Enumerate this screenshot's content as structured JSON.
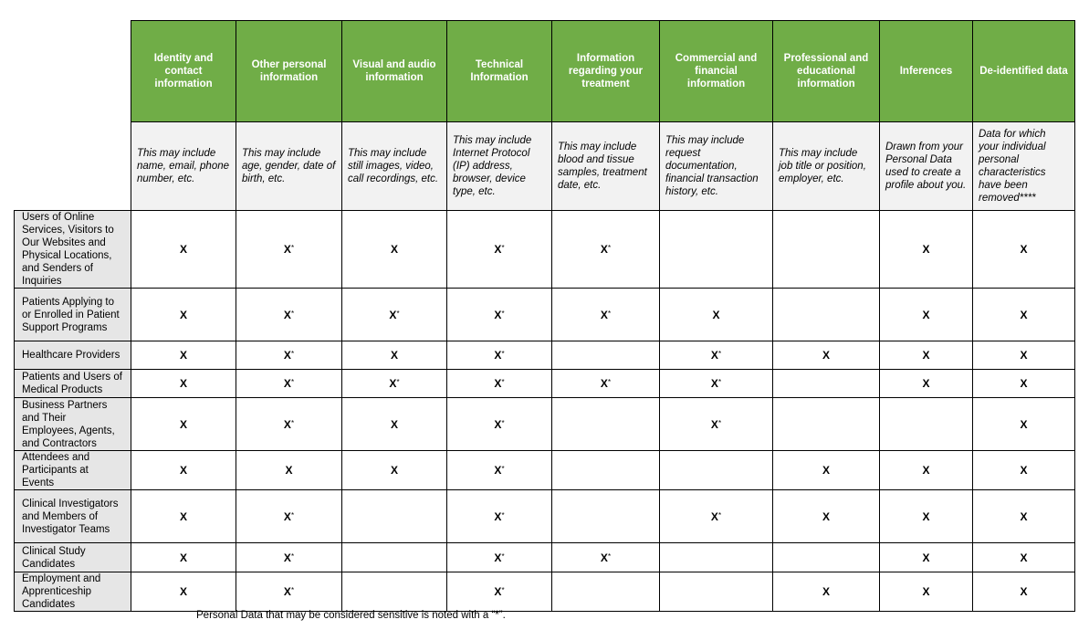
{
  "columns": [
    {
      "title": "Identity and contact information",
      "description": "This may include name, email, phone number, etc."
    },
    {
      "title": "Other personal information",
      "description": "This may include age, gender, date of birth, etc."
    },
    {
      "title": "Visual and audio information",
      "description": "This may include still images, video, call recordings, etc."
    },
    {
      "title": "Technical Information",
      "description": "This may include Internet Protocol (IP) address, browser, device type, etc."
    },
    {
      "title": "Information regarding your treatment",
      "description": "This may include blood and tissue samples, treatment date, etc."
    },
    {
      "title": "Commercial and financial information",
      "description": "This may include request documentation, financial transaction history, etc."
    },
    {
      "title": "Professional and educational information",
      "description": "This may include job title or position, employer, etc."
    },
    {
      "title": "Inferences",
      "description": "Drawn from your Personal Data used to create a profile about you."
    },
    {
      "title": "De-identified data",
      "description": "Data for which your individual personal characteristics have been removed****"
    }
  ],
  "rows": [
    {
      "label": "Users of Online Services, Visitors to Our Websites and Physical Locations, and Senders of Inquiries",
      "cells": [
        "X",
        "X*",
        "X",
        "X*",
        "X*",
        "",
        "",
        "X",
        "X"
      ]
    },
    {
      "label": "Patients Applying to or Enrolled in Patient Support Programs",
      "cells": [
        "X",
        "X*",
        "X*",
        "X*",
        "X*",
        "X",
        "",
        "X",
        "X"
      ]
    },
    {
      "label": "Healthcare Providers",
      "cells": [
        "X",
        "X*",
        "X",
        "X*",
        "",
        "X*",
        "X",
        "X",
        "X"
      ]
    },
    {
      "label": "Patients and Users of Medical Products",
      "cells": [
        "X",
        "X*",
        "X*",
        "X*",
        "X*",
        "X*",
        "",
        "X",
        "X"
      ]
    },
    {
      "label": "Business Partners and Their Employees, Agents, and Contractors",
      "cells": [
        "X",
        "X*",
        "X",
        "X*",
        "",
        "X*",
        "",
        "",
        "X"
      ]
    },
    {
      "label": "Attendees and Participants at Events",
      "cells": [
        "X",
        "X",
        "X",
        "X*",
        "",
        "",
        "X",
        "X",
        "X"
      ]
    },
    {
      "label": "Clinical Investigators and Members of Investigator Teams",
      "cells": [
        "X",
        "X*",
        "",
        "X*",
        "",
        "X*",
        "X",
        "X",
        "X"
      ]
    },
    {
      "label": "Clinical Study Candidates",
      "cells": [
        "X",
        "X*",
        "",
        "X*",
        "X*",
        "",
        "",
        "X",
        "X"
      ]
    },
    {
      "label": "Employment and Apprenticeship Candidates",
      "cells": [
        "X",
        "X*",
        "",
        "X*",
        "",
        "",
        "X",
        "X",
        "X"
      ]
    }
  ],
  "footnote": "Personal Data that may be considered sensitive is noted with a “*”.",
  "colors": {
    "header_bg": "#70ad47",
    "description_bg": "#f2f2f2",
    "row_label_bg": "#e6e6e6"
  }
}
